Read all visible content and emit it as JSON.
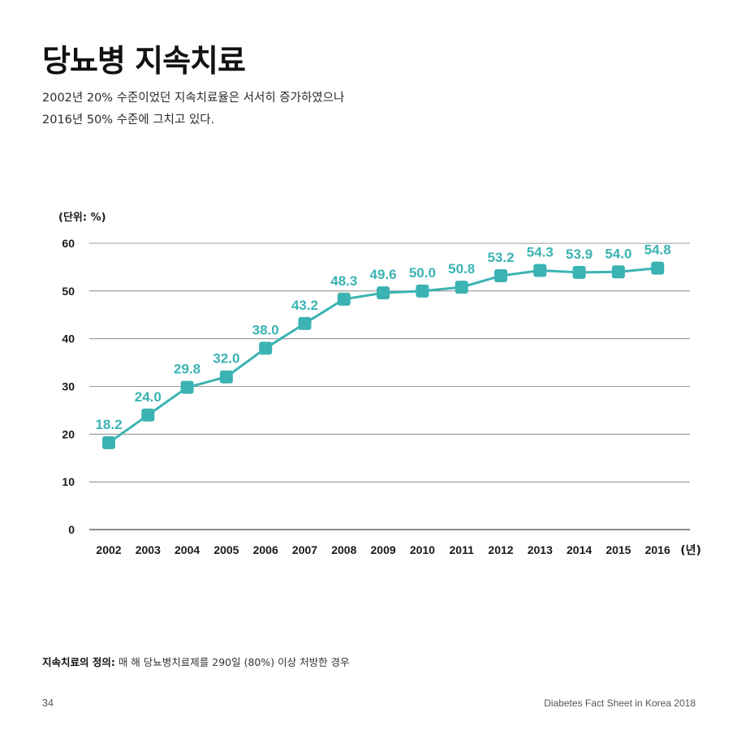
{
  "page": {
    "title": "당뇨병 지속치료",
    "subtitle_lines": [
      "2002년 20% 수준이었던 지속치료율은 서서히 증가하였으나",
      "2016년 50% 수준에 그치고 있다."
    ],
    "footnote_label": "지속치료의 정의:",
    "footnote_text": "매 해 당뇨병치료제를 290일 (80%) 이상 처방한 경우",
    "page_number": "34",
    "footer_title": "Diabetes Fact Sheet in Korea 2018"
  },
  "chart_data": {
    "type": "line",
    "unit_label": "(단위: %)",
    "x_unit_label": "(년)",
    "categories": [
      "2002",
      "2003",
      "2004",
      "2005",
      "2006",
      "2007",
      "2008",
      "2009",
      "2010",
      "2011",
      "2012",
      "2013",
      "2014",
      "2015",
      "2016"
    ],
    "values": [
      18.2,
      24.0,
      29.8,
      32.0,
      38.0,
      43.2,
      48.3,
      49.6,
      50.0,
      50.8,
      53.2,
      54.3,
      53.9,
      54.0,
      54.8
    ],
    "value_labels": [
      "18.2",
      "24.0",
      "29.8",
      "32.0",
      "38.0",
      "43.2",
      "48.3",
      "49.6",
      "50.0",
      "50.8",
      "53.2",
      "54.3",
      "53.9",
      "54.0",
      "54.8"
    ],
    "ylim": [
      0,
      60
    ],
    "yticks": [
      "0",
      "10",
      "20",
      "30",
      "40",
      "50",
      "60"
    ],
    "grid": true,
    "colors": {
      "series": "#3bb3b3",
      "grid": "#777777",
      "text": "#1a1a1a"
    }
  }
}
